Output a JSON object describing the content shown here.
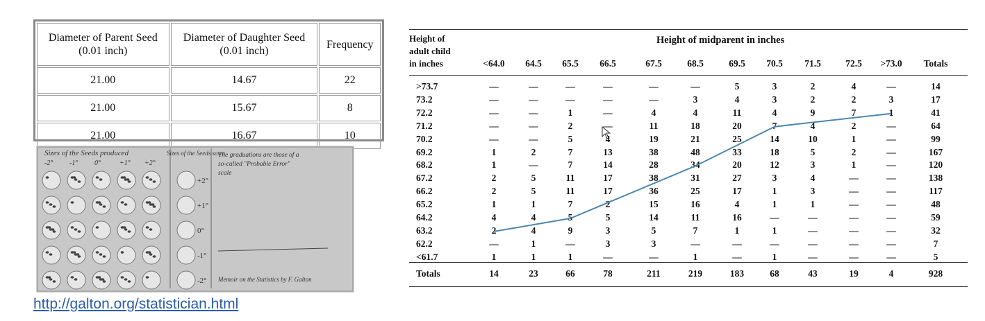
{
  "seed_table": {
    "headers": [
      "Diameter of Parent Seed (0.01 inch)",
      "Diameter of Daughter Seed (0.01 inch)",
      "Frequency"
    ],
    "header_lines": [
      [
        "Diameter of Parent Seed",
        "(0.01 inch)"
      ],
      [
        "Diameter of Daughter Seed",
        "(0.01 inch)"
      ],
      [
        "Frequency"
      ]
    ],
    "rows": [
      [
        "21.00",
        "14.67",
        "22"
      ],
      [
        "21.00",
        "15.67",
        "8"
      ],
      [
        "21.00",
        "16.67",
        "10"
      ]
    ]
  },
  "photo": {
    "column_header": "Sizes of the Seeds produced",
    "sizes": [
      "-2°",
      "-1°",
      "0°",
      "+1°",
      "+2°"
    ],
    "side_header": "Sizes of the Seeds sown",
    "side_labels": [
      "+2°",
      "+1°",
      "0°",
      "-1°",
      "-2°"
    ],
    "note": "The graduations are those of a so-called \"Probable Error\" scale",
    "footer": "Memoir on the Statistics by F. Galton",
    "background_color": "#cfcfcf"
  },
  "link": {
    "text": "http://galton.org/statistician.html"
  },
  "galton_table": {
    "row_header_lines": [
      "Height of",
      "adult child",
      "in inches"
    ],
    "column_group_title": "Height of midparent in inches",
    "columns": [
      "<64.0",
      "64.5",
      "65.5",
      "66.5",
      "67.5",
      "68.5",
      "69.5",
      "70.5",
      "71.5",
      "72.5",
      ">73.0",
      "Totals"
    ],
    "rows": [
      {
        "label": ">73.7",
        "cells": [
          "—",
          "—",
          "—",
          "—",
          "—",
          "—",
          "5",
          "3",
          "2",
          "4",
          "—",
          "14"
        ]
      },
      {
        "label": "73.2",
        "cells": [
          "—",
          "—",
          "—",
          "—",
          "—",
          "3",
          "4",
          "3",
          "2",
          "2",
          "3",
          "17"
        ]
      },
      {
        "label": "72.2",
        "cells": [
          "—",
          "—",
          "1",
          "—",
          "4",
          "4",
          "11",
          "4",
          "9",
          "7",
          "1",
          "41"
        ]
      },
      {
        "label": "71.2",
        "cells": [
          "—",
          "—",
          "2",
          "—",
          "11",
          "18",
          "20",
          "7",
          "4",
          "2",
          "—",
          "64"
        ]
      },
      {
        "label": "70.2",
        "cells": [
          "—",
          "—",
          "5",
          "4",
          "19",
          "21",
          "25",
          "14",
          "10",
          "1",
          "—",
          "99"
        ]
      },
      {
        "label": "69.2",
        "cells": [
          "1",
          "2",
          "7",
          "13",
          "38",
          "48",
          "33",
          "18",
          "5",
          "2",
          "—",
          "167"
        ]
      },
      {
        "label": "68.2",
        "cells": [
          "1",
          "—",
          "7",
          "14",
          "28",
          "34",
          "20",
          "12",
          "3",
          "1",
          "—",
          "120"
        ]
      },
      {
        "label": "67.2",
        "cells": [
          "2",
          "5",
          "11",
          "17",
          "38",
          "31",
          "27",
          "3",
          "4",
          "—",
          "—",
          "138"
        ]
      },
      {
        "label": "66.2",
        "cells": [
          "2",
          "5",
          "11",
          "17",
          "36",
          "25",
          "17",
          "1",
          "3",
          "—",
          "—",
          "117"
        ]
      },
      {
        "label": "65.2",
        "cells": [
          "1",
          "1",
          "7",
          "2",
          "15",
          "16",
          "4",
          "1",
          "1",
          "—",
          "—",
          "48"
        ]
      },
      {
        "label": "64.2",
        "cells": [
          "4",
          "4",
          "5",
          "5",
          "14",
          "11",
          "16",
          "—",
          "—",
          "—",
          "—",
          "59"
        ]
      },
      {
        "label": "63.2",
        "cells": [
          "2",
          "4",
          "9",
          "3",
          "5",
          "7",
          "1",
          "1",
          "—",
          "—",
          "—",
          "32"
        ]
      },
      {
        "label": "62.2",
        "cells": [
          "—",
          "1",
          "—",
          "3",
          "3",
          "—",
          "—",
          "—",
          "—",
          "—",
          "—",
          "7"
        ]
      },
      {
        "label": "<61.7",
        "cells": [
          "1",
          "1",
          "1",
          "—",
          "—",
          "1",
          "—",
          "1",
          "—",
          "—",
          "—",
          "5"
        ]
      }
    ],
    "totals": {
      "label": "Totals",
      "cells": [
        "14",
        "23",
        "66",
        "78",
        "211",
        "219",
        "183",
        "68",
        "43",
        "19",
        "4",
        "928"
      ]
    },
    "overlay_line": {
      "color": "#4a86b0",
      "points": [
        [
          "<64.0",
          "63.2"
        ],
        [
          "65.5",
          "64.2"
        ],
        [
          "68.5",
          "68.2"
        ],
        [
          "70.5",
          "71.2"
        ],
        [
          ">73.0",
          "72.2"
        ]
      ]
    }
  }
}
